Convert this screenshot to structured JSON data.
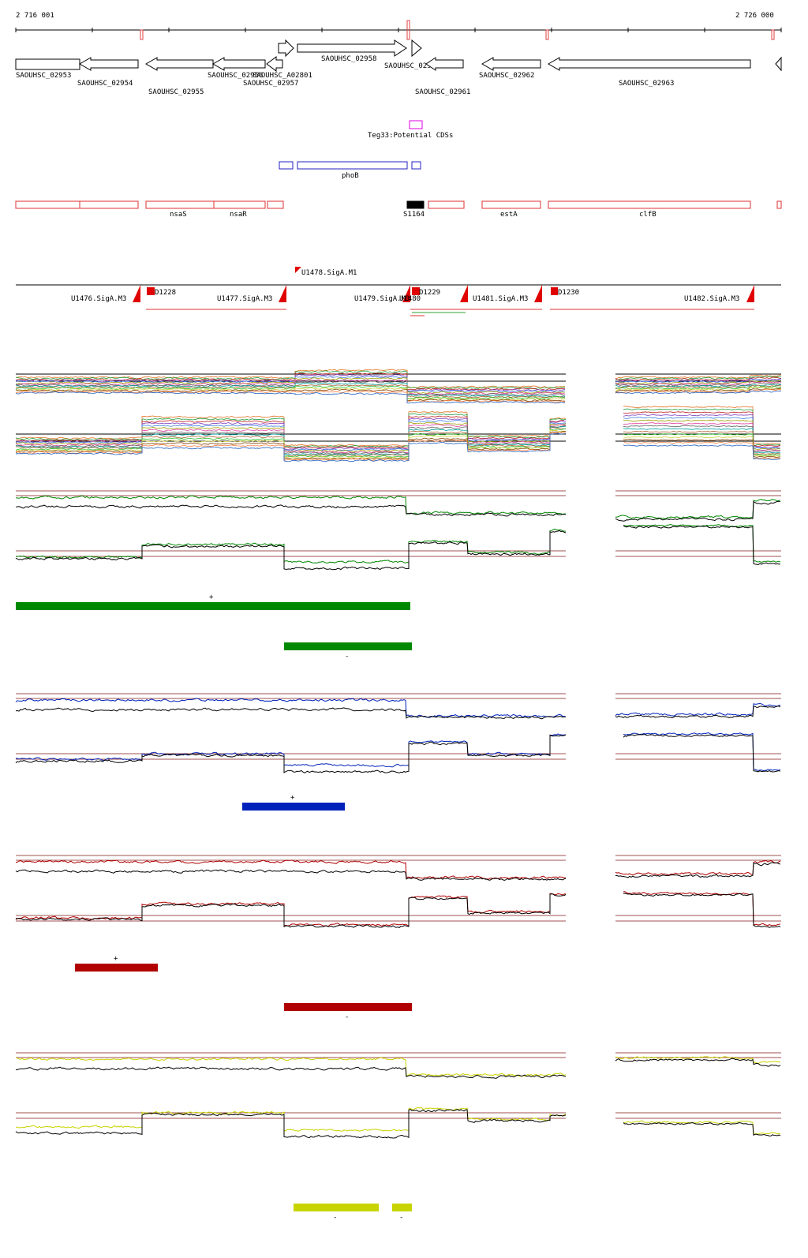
{
  "coords": {
    "start_label": "2 716 001",
    "end_label": "2 726 000"
  },
  "genes": [
    {
      "label": "SAOUHSC_02953",
      "dir": "+"
    },
    {
      "label": "SAOUHSC_02954",
      "dir": "-"
    },
    {
      "label": "SAOUHSC_02955",
      "dir": "-"
    },
    {
      "label": "SAOUHSC_02956",
      "dir": "-"
    },
    {
      "label": "SAOUHSC_02957",
      "dir": "-"
    },
    {
      "label": "SAOUHSC_A02801",
      "dir": "+"
    },
    {
      "label": "SAOUHSC_02958",
      "dir": "+"
    },
    {
      "label": "SAOUHSC_02960",
      "dir": "+"
    },
    {
      "label": "SAOUHSC_02961",
      "dir": "-"
    },
    {
      "label": "SAOUHSC_02962",
      "dir": "-"
    },
    {
      "label": "SAOUHSC_02963",
      "dir": "-"
    },
    {
      "label": "",
      "dir": "-"
    }
  ],
  "potential_cds": {
    "label": "Teg33:Potential CDSs"
  },
  "pho_track": {
    "label": "phoB"
  },
  "red_genes": {
    "labels": [
      "nsaS",
      "nsaR",
      "S1164",
      "estA",
      "clfB"
    ]
  },
  "promoters": {
    "labels": [
      "U1478.SigA.M1",
      "U1476.SigA.M3",
      "D1228",
      "U1477.SigA.M3",
      "U1479.SigA.M3",
      "U1480",
      "D1229",
      "U1481.SigA.M3",
      "D1230",
      "U1482.SigA.M3"
    ]
  },
  "conditions": {
    "green": {
      "color": "#008800",
      "top_label": "+",
      "bottom_label": "-"
    },
    "blue": {
      "color": "#0022bb",
      "top_label": "+"
    },
    "red": {
      "color": "#b00000",
      "top_label": "+",
      "bottom_label": "-"
    },
    "yellow": {
      "color": "#c8d400",
      "labels": [
        "-",
        "-"
      ]
    }
  }
}
